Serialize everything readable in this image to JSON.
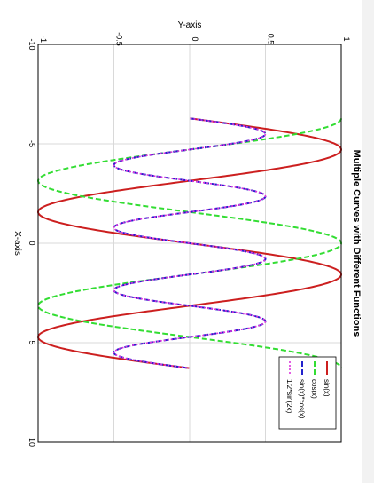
{
  "chart_data": {
    "type": "line",
    "title": "Multiple Curves with Different Functions",
    "xlabel": "X-axis",
    "ylabel": "Y-axis",
    "xlim": [
      -10,
      10
    ],
    "ylim": [
      -1,
      1
    ],
    "xticks": [
      "-10",
      "-5",
      "0",
      "5",
      "10"
    ],
    "yticks": [
      "-1",
      "-0.5",
      "0",
      "0.5",
      "1"
    ],
    "grid": true,
    "legend_position": "bottom-right",
    "rotation": "rotated 90 degrees clockwise",
    "x_range_plotted": [
      -6.28,
      6.28
    ],
    "series": [
      {
        "name": "sin(x)",
        "function": "sin",
        "color": "#cc1f1f",
        "style": "solid",
        "x": [
          -6.28,
          -4.71,
          -3.14,
          -1.57,
          0,
          1.57,
          3.14,
          4.71,
          6.28
        ],
        "values": [
          0,
          1,
          0,
          -1,
          0,
          1,
          0,
          -1,
          0
        ]
      },
      {
        "name": "cos(x)",
        "function": "cos",
        "color": "#33dd33",
        "style": "dashed",
        "x": [
          -6.28,
          -4.71,
          -3.14,
          -1.57,
          0,
          1.57,
          3.14,
          4.71,
          6.28
        ],
        "values": [
          1,
          0,
          -1,
          0,
          1,
          0,
          -1,
          0,
          1
        ]
      },
      {
        "name": "sin(x)*cos(x)",
        "function": "sincos",
        "color": "#2222cc",
        "style": "dashed",
        "x": [
          -6.28,
          -5.5,
          -4.71,
          -3.93,
          -3.14,
          -2.36,
          -1.57,
          -0.79,
          0,
          0.79,
          1.57,
          2.36,
          3.14,
          3.93,
          4.71,
          5.5,
          6.28
        ],
        "values": [
          0,
          0.5,
          0,
          -0.5,
          0,
          0.5,
          0,
          -0.5,
          0,
          0.5,
          0,
          -0.5,
          0,
          0.5,
          0,
          -0.5,
          0
        ]
      },
      {
        "name": "1/2*sin(2x)",
        "function": "halfsin2x",
        "color": "#dd33dd",
        "style": "dotted",
        "x": [
          -6.28,
          -5.5,
          -4.71,
          -3.93,
          -3.14,
          -2.36,
          -1.57,
          -0.79,
          0,
          0.79,
          1.57,
          2.36,
          3.14,
          3.93,
          4.71,
          5.5,
          6.28
        ],
        "values": [
          0,
          0.5,
          0,
          -0.5,
          0,
          0.5,
          0,
          -0.5,
          0,
          0.5,
          0,
          -0.5,
          0,
          0.5,
          0,
          -0.5,
          0
        ]
      }
    ]
  }
}
